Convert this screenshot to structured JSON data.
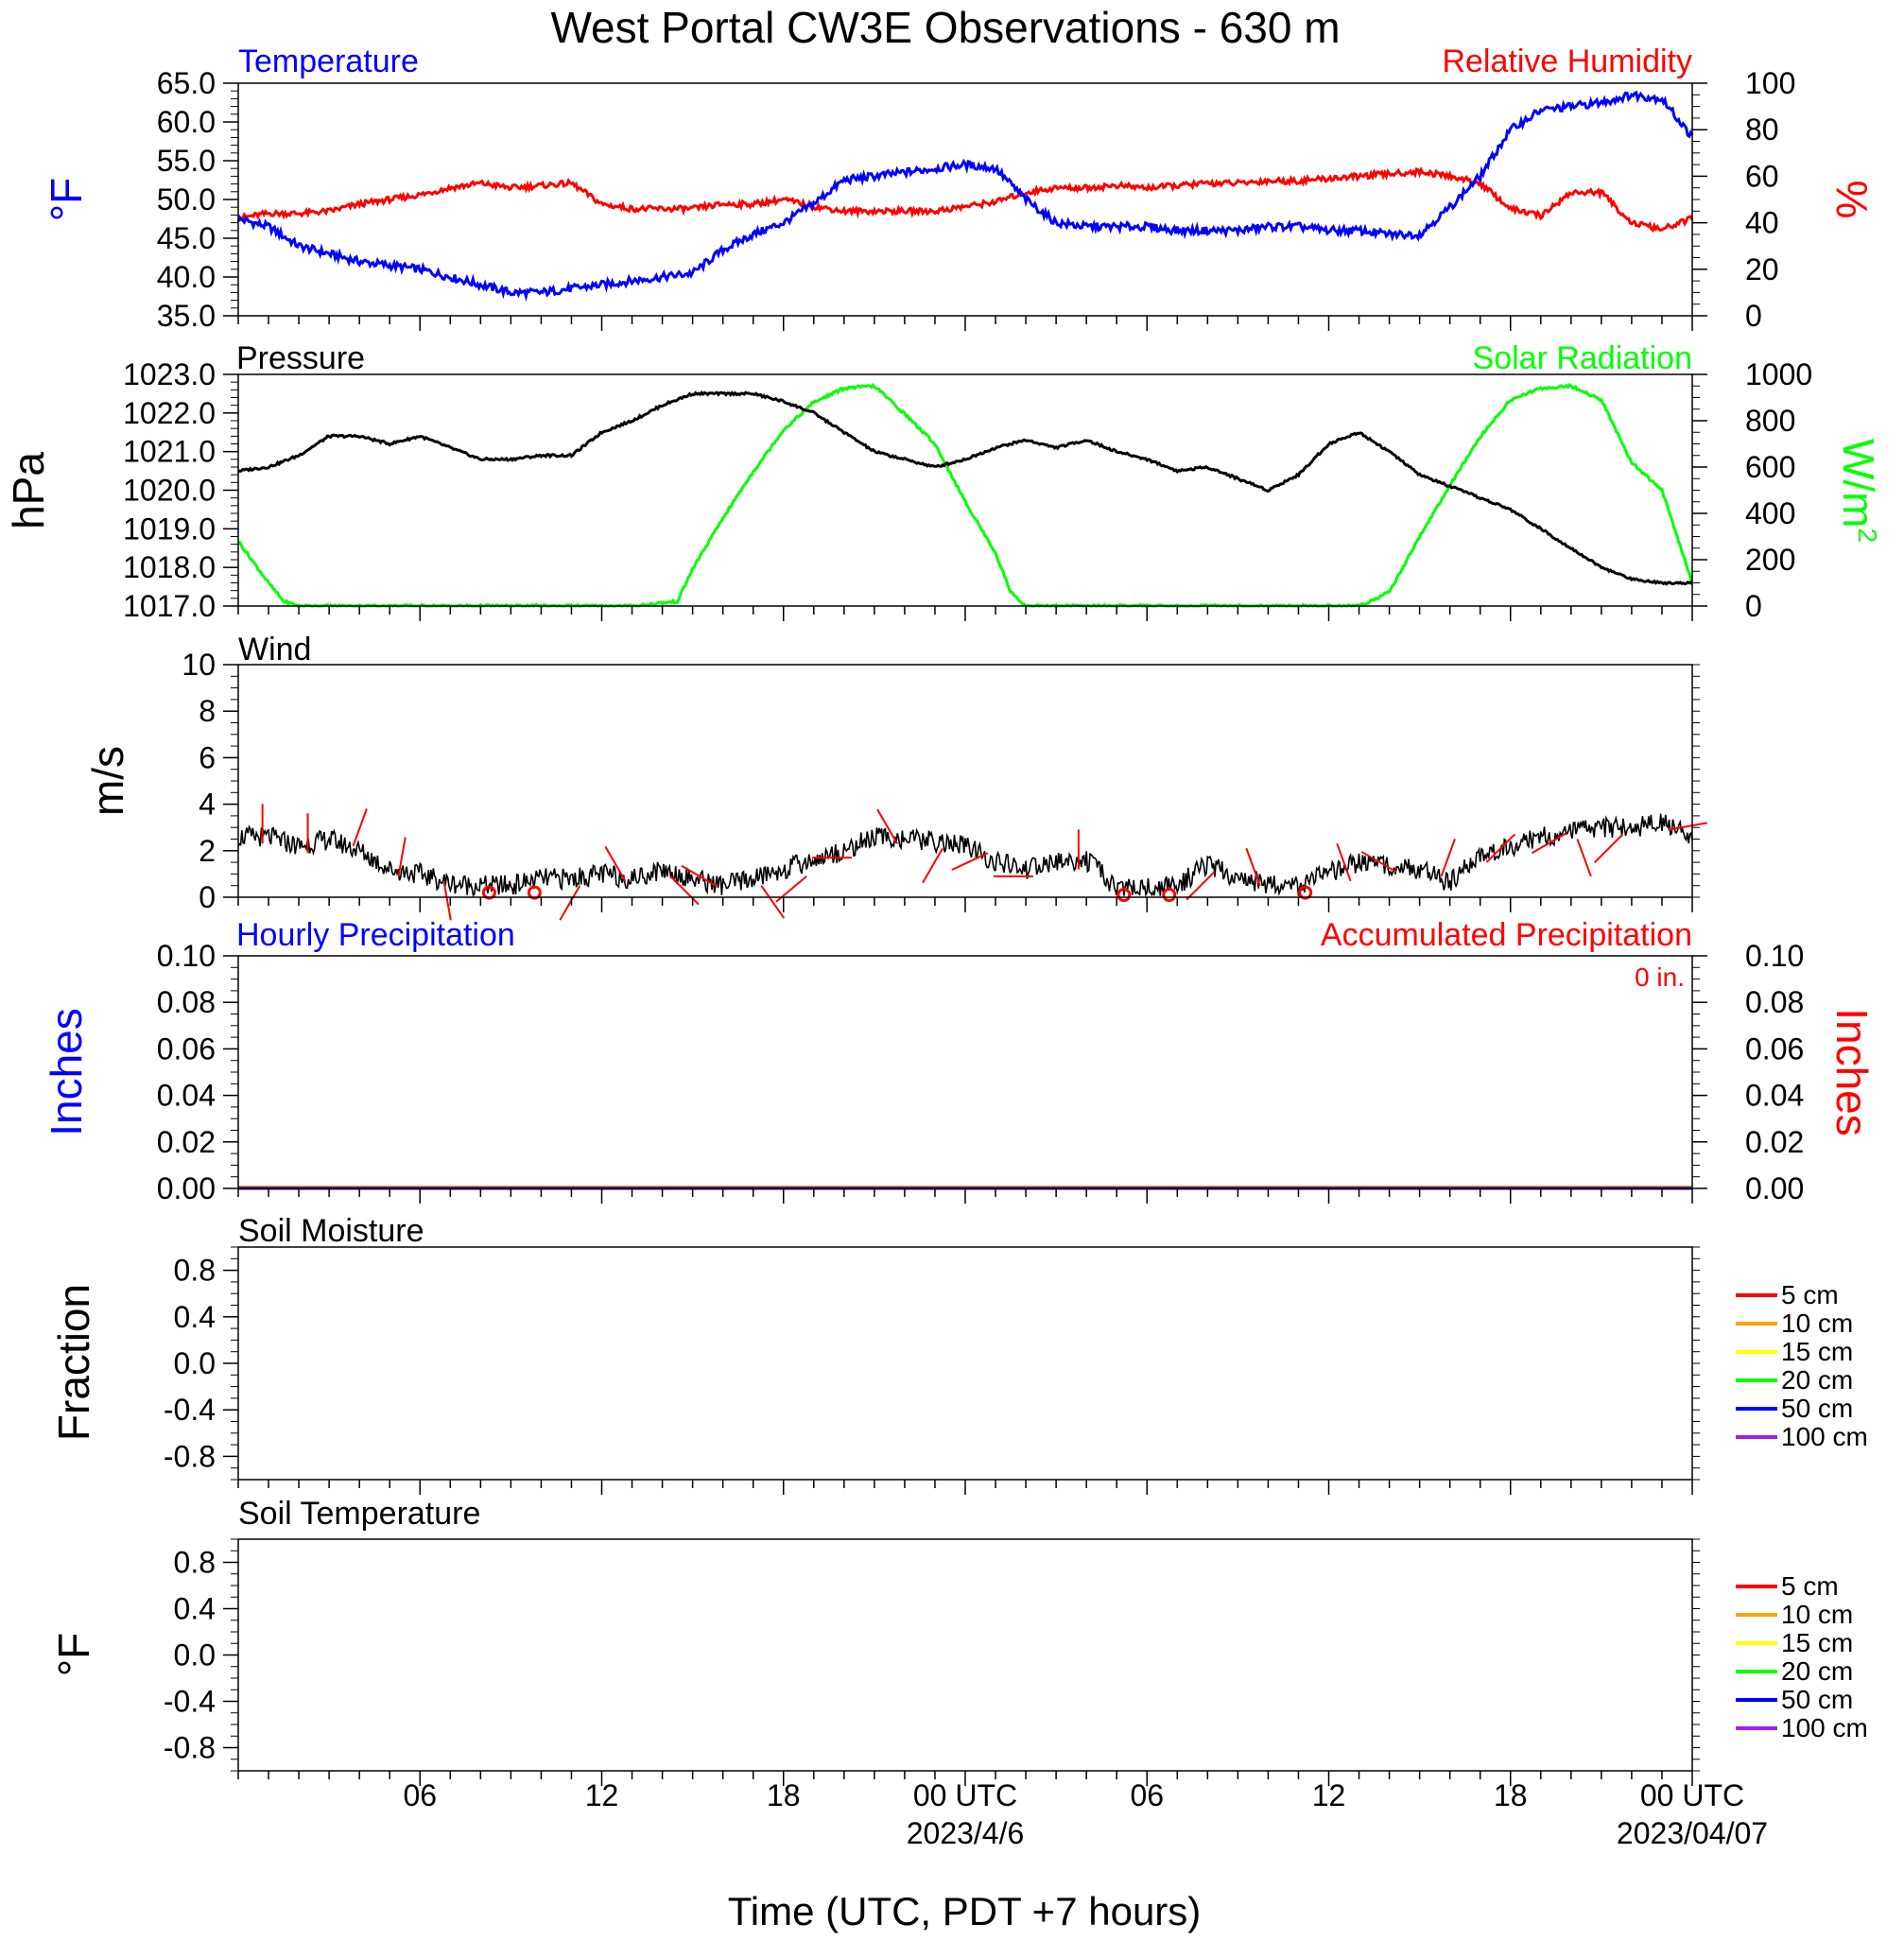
{
  "title": "West Portal CW3E Observations - 630 m",
  "xaxis": {
    "label": "Time (UTC, PDT +7 hours)",
    "range_hours": [
      -1,
      47
    ],
    "ticks": [
      {
        "h": 5,
        "label": "06"
      },
      {
        "h": 11,
        "label": "12"
      },
      {
        "h": 17,
        "label": "18"
      },
      {
        "h": 23,
        "label": "00 UTC",
        "date": "2023/4/6"
      },
      {
        "h": 29,
        "label": "06"
      },
      {
        "h": 35,
        "label": "12"
      },
      {
        "h": 41,
        "label": "18"
      },
      {
        "h": 47,
        "label": "00 UTC",
        "date": "2023/04/07"
      }
    ]
  },
  "colors": {
    "temperature": "#0000ff",
    "humidity": "#ff0000",
    "pressure": "#000000",
    "solar": "#00ff00",
    "wind": "#000000",
    "barbs": "#ff0000",
    "precip_hourly": "#0000ff",
    "precip_accum": "#ff0000",
    "soil_5": "#ff0000",
    "soil_10": "#ffa500",
    "soil_15": "#ffff00",
    "soil_20": "#00ff00",
    "soil_50": "#0000ff",
    "soil_100": "#a020f0"
  },
  "panels": {
    "temp_rh": {
      "left_title": "Temperature",
      "right_title": "Relative Humidity",
      "left_unit": "°F",
      "right_unit": "%",
      "left_ticks": [
        "35.0",
        "40.0",
        "45.0",
        "50.0",
        "55.0",
        "60.0",
        "65.0"
      ],
      "right_ticks": [
        "0",
        "20",
        "40",
        "60",
        "80",
        "100"
      ]
    },
    "pressure_solar": {
      "left_title": "Pressure",
      "right_title": "Solar Radiation",
      "left_unit": "hPa",
      "right_unit": "W/m²",
      "left_ticks": [
        "1017.0",
        "1018.0",
        "1019.0",
        "1020.0",
        "1021.0",
        "1022.0",
        "1023.0"
      ],
      "right_ticks": [
        "0",
        "200",
        "400",
        "600",
        "800",
        "1000"
      ]
    },
    "wind": {
      "left_title": "Wind",
      "left_unit": "m/s",
      "left_ticks": [
        "0",
        "2",
        "4",
        "6",
        "8",
        "10"
      ]
    },
    "precip": {
      "left_title": "Hourly Precipitation",
      "right_title": "Accumulated Precipitation",
      "total_label": "0 in.",
      "left_unit": "Inches",
      "right_unit": "Inches",
      "left_ticks": [
        "0.00",
        "0.02",
        "0.04",
        "0.06",
        "0.08",
        "0.10"
      ],
      "right_ticks": [
        "0.00",
        "0.02",
        "0.04",
        "0.06",
        "0.08",
        "0.10"
      ]
    },
    "soil_moisture": {
      "left_title": "Soil Moisture",
      "left_unit": "Fraction",
      "left_ticks": [
        "-0.8",
        "-0.4",
        "0.0",
        "0.4",
        "0.8"
      ],
      "legend": [
        "5 cm",
        "10 cm",
        "15 cm",
        "20 cm",
        "50 cm",
        "100 cm"
      ]
    },
    "soil_temperature": {
      "left_title": "Soil Temperature",
      "left_unit": "°F",
      "left_ticks": [
        "-0.8",
        "-0.4",
        "0.0",
        "0.4",
        "0.8"
      ],
      "legend": [
        "5 cm",
        "10 cm",
        "15 cm",
        "20 cm",
        "50 cm",
        "100 cm"
      ]
    }
  },
  "chart_data": [
    {
      "type": "line",
      "title": "Temperature",
      "ylabel": "°F",
      "ylim": [
        35,
        65
      ],
      "x_units": "hours since 2023-04-05 00 UTC",
      "series": [
        {
          "name": "Temperature",
          "x": [
            -1,
            0,
            1,
            2,
            3,
            4,
            5,
            6,
            7,
            8,
            9,
            10,
            11,
            12,
            13,
            14,
            15,
            16,
            17,
            18,
            19,
            20,
            21,
            22,
            23,
            24,
            25,
            26,
            27,
            28,
            29,
            30,
            31,
            32,
            33,
            34,
            35,
            36,
            37,
            38,
            39,
            40,
            41,
            42,
            43,
            44,
            45,
            46,
            47
          ],
          "values": [
            47.5,
            46.5,
            44.0,
            43.0,
            42.0,
            41.5,
            41.0,
            40.0,
            39.0,
            38.0,
            38.0,
            38.5,
            39.0,
            39.5,
            40.0,
            40.5,
            43.5,
            45.5,
            47.0,
            49.5,
            52.5,
            53.0,
            53.5,
            54.0,
            54.5,
            54.0,
            50.0,
            47.0,
            46.5,
            46.5,
            46.5,
            46.0,
            46.0,
            46.0,
            46.5,
            46.5,
            46.0,
            46.0,
            45.5,
            45.5,
            49.0,
            53.0,
            59.0,
            61.5,
            62.0,
            62.5,
            63.5,
            63.0,
            58.0
          ]
        }
      ]
    },
    {
      "type": "line",
      "title": "Relative Humidity",
      "ylabel": "%",
      "ylim": [
        0,
        100
      ],
      "x_units": "hours since 2023-04-05 00 UTC",
      "series": [
        {
          "name": "Relative Humidity",
          "x": [
            -1,
            0,
            1,
            2,
            3,
            4,
            5,
            6,
            7,
            8,
            9,
            10,
            11,
            12,
            13,
            14,
            15,
            16,
            17,
            18,
            19,
            20,
            21,
            22,
            23,
            24,
            25,
            26,
            27,
            28,
            29,
            30,
            31,
            32,
            33,
            34,
            35,
            36,
            37,
            38,
            39,
            40,
            41,
            42,
            43,
            44,
            45,
            46,
            47
          ],
          "values": [
            42,
            44,
            44,
            45,
            48,
            50,
            52,
            55,
            57,
            55,
            56,
            57,
            48,
            46,
            46,
            46,
            48,
            48,
            50,
            47,
            45,
            45,
            45,
            45,
            47,
            49,
            53,
            55,
            55,
            56,
            55,
            56,
            57,
            57,
            58,
            58,
            59,
            60,
            61,
            62,
            60,
            57,
            46,
            43,
            53,
            53,
            40,
            37,
            42
          ]
        }
      ]
    },
    {
      "type": "line",
      "title": "Pressure",
      "ylabel": "hPa",
      "ylim": [
        1017,
        1023
      ],
      "x_units": "hours since 2023-04-05 00 UTC",
      "series": [
        {
          "name": "Pressure",
          "x": [
            -1,
            0,
            1,
            2,
            3,
            4,
            5,
            6,
            7,
            8,
            9,
            10,
            11,
            12,
            13,
            14,
            15,
            16,
            17,
            18,
            19,
            20,
            21,
            22,
            23,
            24,
            25,
            26,
            27,
            28,
            29,
            30,
            31,
            32,
            33,
            34,
            35,
            36,
            37,
            38,
            39,
            40,
            41,
            42,
            43,
            44,
            45,
            46,
            47
          ],
          "values": [
            1020.5,
            1020.6,
            1020.9,
            1021.4,
            1021.4,
            1021.2,
            1021.4,
            1021.1,
            1020.8,
            1020.8,
            1020.9,
            1020.9,
            1021.5,
            1021.8,
            1022.2,
            1022.5,
            1022.5,
            1022.5,
            1022.3,
            1022.0,
            1021.5,
            1021.0,
            1020.8,
            1020.6,
            1020.8,
            1021.1,
            1021.3,
            1021.1,
            1021.3,
            1021.0,
            1020.8,
            1020.5,
            1020.6,
            1020.3,
            1020.0,
            1020.4,
            1021.2,
            1021.5,
            1021.0,
            1020.4,
            1020.1,
            1019.8,
            1019.5,
            1019.0,
            1018.5,
            1018.0,
            1017.7,
            1017.6,
            1017.6
          ]
        }
      ]
    },
    {
      "type": "line",
      "title": "Solar Radiation",
      "ylabel": "W/m²",
      "ylim": [
        0,
        1000
      ],
      "x_units": "hours since 2023-04-05 00 UTC",
      "series": [
        {
          "name": "Solar Radiation",
          "x": [
            -1,
            0,
            0.5,
            1,
            12,
            13.5,
            14,
            15,
            16,
            17,
            18,
            19,
            20,
            21,
            22,
            23,
            24,
            24.5,
            25,
            36,
            37,
            38,
            39,
            40,
            41,
            42,
            43,
            44,
            45,
            46,
            47
          ],
          "values": [
            280,
            100,
            20,
            0,
            0,
            20,
            160,
            380,
            580,
            760,
            880,
            940,
            950,
            830,
            700,
            450,
            230,
            60,
            0,
            0,
            60,
            300,
            520,
            730,
            890,
            940,
            950,
            890,
            620,
            500,
            100
          ]
        }
      ]
    },
    {
      "type": "line",
      "title": "Wind",
      "ylabel": "m/s",
      "ylim": [
        0,
        10
      ],
      "x_units": "hours since 2023-04-05 00 UTC",
      "series": [
        {
          "name": "Wind",
          "x": [
            -1,
            0,
            1,
            2,
            3,
            4,
            5,
            6,
            7,
            8,
            9,
            10,
            11,
            12,
            13,
            14,
            15,
            16,
            17,
            18,
            19,
            20,
            21,
            22,
            23,
            24,
            25,
            26,
            27,
            28,
            29,
            30,
            31,
            32,
            33,
            34,
            35,
            36,
            37,
            38,
            39,
            40,
            41,
            42,
            43,
            44,
            45,
            46,
            47
          ],
          "values": [
            2.6,
            2.6,
            2.2,
            2.5,
            2.0,
            1.2,
            1.0,
            0.6,
            0.5,
            0.5,
            0.8,
            0.8,
            1.0,
            0.8,
            1.2,
            0.8,
            0.5,
            0.8,
            1.2,
            1.6,
            2.0,
            2.6,
            2.5,
            2.4,
            2.2,
            1.5,
            1.2,
            1.5,
            1.6,
            0.4,
            0.4,
            0.5,
            1.4,
            0.8,
            0.6,
            0.5,
            1.0,
            1.5,
            1.4,
            1.2,
            0.6,
            1.8,
            2.2,
            2.6,
            2.8,
            3.0,
            3.0,
            3.2,
            2.6
          ]
        }
      ],
      "barbs_direction_deg": [
        0,
        0,
        20,
        10,
        170,
        135,
        160,
        210,
        330,
        135,
        300,
        145,
        230,
        270,
        330,
        210,
        245,
        270,
        0,
        0,
        0,
        225,
        340,
        225,
        340,
        300,
        20,
        45,
        60,
        160,
        225,
        80
      ]
    },
    {
      "type": "line",
      "title": "Hourly Precipitation",
      "ylabel": "Inches",
      "ylim": [
        0,
        0.1
      ],
      "series": [
        {
          "name": "Hourly Precipitation",
          "values": [
            0,
            0
          ]
        },
        {
          "name": "Accumulated Precipitation",
          "values": [
            0,
            0
          ]
        }
      ]
    },
    {
      "type": "line",
      "title": "Soil Moisture",
      "ylabel": "Fraction",
      "ylim": [
        -1,
        1
      ],
      "series": []
    },
    {
      "type": "line",
      "title": "Soil Temperature",
      "ylabel": "°F",
      "ylim": [
        -1,
        1
      ],
      "series": []
    }
  ]
}
